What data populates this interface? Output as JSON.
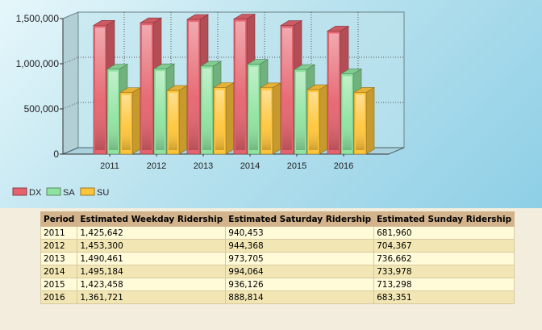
{
  "chart_data": {
    "type": "bar",
    "categories": [
      "2011",
      "2012",
      "2013",
      "2014",
      "2015",
      "2016"
    ],
    "series": [
      {
        "name": "DX",
        "color": "#e5636e",
        "values": [
          1425642,
          1453300,
          1490461,
          1495184,
          1423458,
          1361721
        ]
      },
      {
        "name": "SA",
        "color": "#8fe3a0",
        "values": [
          940453,
          944368,
          973705,
          994064,
          936126,
          888814
        ]
      },
      {
        "name": "SU",
        "color": "#ffc53a",
        "values": [
          681960,
          704367,
          736662,
          733978,
          713298,
          683351
        ]
      }
    ],
    "ylim": [
      0,
      1500000
    ],
    "yticks": [
      "0",
      "500,000",
      "1,000,000",
      "1,500,000"
    ],
    "grid": true,
    "legend": "bottom-left",
    "style": "3d"
  },
  "table": {
    "headers": [
      "Period",
      "Estimated Weekday Ridership",
      "Estimated Saturday Ridership",
      "Estimated Sunday Ridership"
    ],
    "rows": [
      [
        "2011",
        "1,425,642",
        "940,453",
        "681,960"
      ],
      [
        "2012",
        "1,453,300",
        "944,368",
        "704,367"
      ],
      [
        "2013",
        "1,490,461",
        "973,705",
        "736,662"
      ],
      [
        "2014",
        "1,495,184",
        "994,064",
        "733,978"
      ],
      [
        "2015",
        "1,423,458",
        "936,126",
        "713,298"
      ],
      [
        "2016",
        "1,361,721",
        "888,814",
        "683,351"
      ]
    ]
  }
}
